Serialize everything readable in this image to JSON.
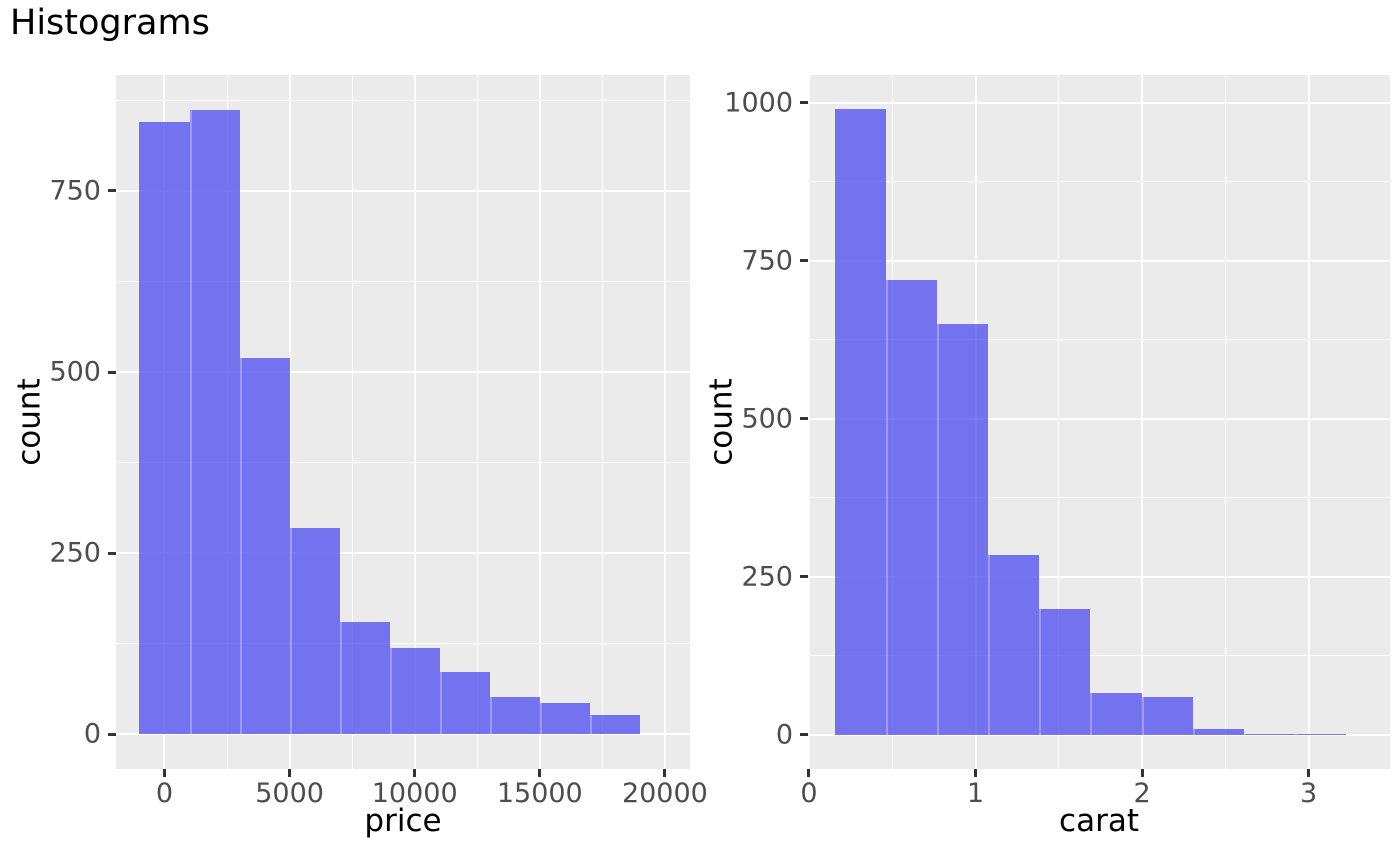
{
  "title": "Histograms",
  "colors": {
    "background": "#FFFFFF",
    "panel_background": "#EBEBEB",
    "gridline_major": "#FFFFFF",
    "gridline_minor": "#FFFFFF",
    "bar_fill": "#7572EE",
    "bar_seam": "#8B88F2",
    "tick_label": "#4D4D4D",
    "axis_title": "#000000",
    "tick_mark": "#333333"
  },
  "chart_data": [
    {
      "type": "bar",
      "subtype": "histogram",
      "xlabel": "price",
      "ylabel": "count",
      "bin_width": 2000,
      "bin_edges": [
        -1000,
        1000,
        3000,
        5000,
        7000,
        9000,
        11000,
        13000,
        15000,
        17000,
        19000
      ],
      "counts": [
        845,
        862,
        519,
        285,
        155,
        119,
        86,
        51,
        43,
        26
      ],
      "x_ticks": [
        0,
        5000,
        10000,
        15000,
        20000
      ],
      "x_tick_labels": [
        "0",
        "5000",
        "10000",
        "15000",
        "20000"
      ],
      "x_minor_ticks": [
        2500,
        7500,
        12500,
        17500
      ],
      "y_ticks": [
        0,
        250,
        500,
        750
      ],
      "y_tick_labels": [
        "0",
        "250",
        "500",
        "750"
      ],
      "y_minor_ticks": [
        125,
        375,
        625,
        875
      ],
      "xlim": [
        -1938,
        21003
      ],
      "ylim": [
        -48.3,
        910.2
      ],
      "grid": "white major+minor on gray panel",
      "legend": "none"
    },
    {
      "type": "bar",
      "subtype": "histogram",
      "xlabel": "carat",
      "ylabel": "count",
      "bin_width": 0.307,
      "bin_edges": [
        0.155,
        0.462,
        0.769,
        1.076,
        1.383,
        1.69,
        1.997,
        2.304,
        2.611,
        2.918,
        3.225
      ],
      "counts": [
        990,
        720,
        650,
        285,
        200,
        66,
        60,
        10,
        2,
        2
      ],
      "x_ticks": [
        0,
        1,
        2,
        3
      ],
      "x_tick_labels": [
        "0",
        "1",
        "2",
        "3"
      ],
      "x_minor_ticks": [
        0.5,
        1.5,
        2.5
      ],
      "y_ticks": [
        0,
        250,
        500,
        750,
        1000
      ],
      "y_tick_labels": [
        "0",
        "250",
        "500",
        "750",
        "1000"
      ],
      "y_minor_ticks": [
        125,
        375,
        625,
        875
      ],
      "xlim": [
        -0.006,
        3.489
      ],
      "ylim": [
        -53.8,
        1044.3
      ],
      "grid": "white major+minor on gray panel",
      "legend": "none"
    }
  ]
}
